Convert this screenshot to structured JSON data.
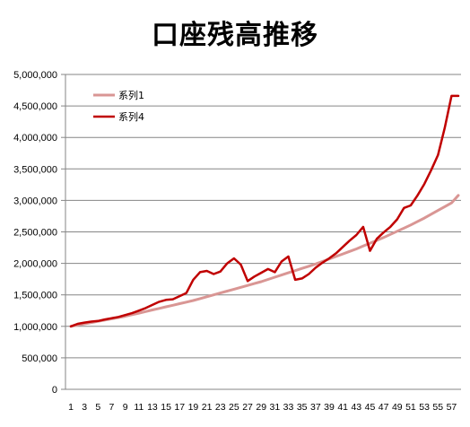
{
  "chart_data": {
    "type": "line",
    "title": "口座残高推移",
    "xlabel": "",
    "ylabel": "",
    "ylim": [
      0,
      5000000
    ],
    "yticks": [
      0,
      500000,
      1000000,
      1500000,
      2000000,
      2500000,
      3000000,
      3500000,
      4000000,
      4500000,
      5000000
    ],
    "ytick_labels": [
      "0",
      "500,000",
      "1,000,000",
      "1,500,000",
      "2,000,000",
      "2,500,000",
      "3,000,000",
      "3,500,000",
      "4,000,000",
      "4,500,000",
      "5,000,000"
    ],
    "x": [
      1,
      2,
      3,
      4,
      5,
      6,
      7,
      8,
      9,
      10,
      11,
      12,
      13,
      14,
      15,
      16,
      17,
      18,
      19,
      20,
      21,
      22,
      23,
      24,
      25,
      26,
      27,
      28,
      29,
      30,
      31,
      32,
      33,
      34,
      35,
      36,
      37,
      38,
      39,
      40,
      41,
      42,
      43,
      44,
      45,
      46,
      47,
      48,
      49,
      50,
      51,
      52,
      53,
      54,
      55,
      56,
      57,
      58
    ],
    "xtick_labels": [
      "1",
      "3",
      "5",
      "7",
      "9",
      "11",
      "13",
      "15",
      "17",
      "19",
      "21",
      "23",
      "25",
      "27",
      "29",
      "31",
      "33",
      "35",
      "37",
      "39",
      "41",
      "43",
      "45",
      "47",
      "49",
      "51",
      "53",
      "55",
      "57"
    ],
    "grid": true,
    "legend_position": "top-left",
    "series": [
      {
        "name": "系列1",
        "color": "#d99694",
        "values": [
          1000000,
          1020000,
          1040000,
          1060000,
          1080000,
          1100000,
          1120000,
          1140000,
          1160000,
          1185000,
          1210000,
          1235000,
          1260000,
          1285000,
          1310000,
          1335000,
          1360000,
          1385000,
          1410000,
          1440000,
          1470000,
          1500000,
          1530000,
          1560000,
          1590000,
          1620000,
          1650000,
          1680000,
          1710000,
          1745000,
          1780000,
          1815000,
          1850000,
          1885000,
          1920000,
          1955000,
          1990000,
          2030000,
          2070000,
          2110000,
          2150000,
          2190000,
          2230000,
          2275000,
          2320000,
          2365000,
          2410000,
          2460000,
          2510000,
          2560000,
          2610000,
          2665000,
          2720000,
          2780000,
          2840000,
          2900000,
          2960000,
          3080000
        ]
      },
      {
        "name": "系列4",
        "color": "#c00000",
        "values": [
          1000000,
          1040000,
          1060000,
          1075000,
          1085000,
          1110000,
          1130000,
          1150000,
          1180000,
          1210000,
          1250000,
          1290000,
          1340000,
          1390000,
          1420000,
          1430000,
          1480000,
          1530000,
          1740000,
          1860000,
          1880000,
          1830000,
          1870000,
          2000000,
          2080000,
          1980000,
          1720000,
          1790000,
          1850000,
          1910000,
          1860000,
          2030000,
          2110000,
          1740000,
          1760000,
          1830000,
          1930000,
          2010000,
          2080000,
          2160000,
          2260000,
          2360000,
          2450000,
          2580000,
          2200000,
          2390000,
          2490000,
          2580000,
          2700000,
          2880000,
          2920000,
          3080000,
          3260000,
          3480000,
          3720000,
          4150000,
          4660000,
          4660000
        ]
      }
    ]
  }
}
